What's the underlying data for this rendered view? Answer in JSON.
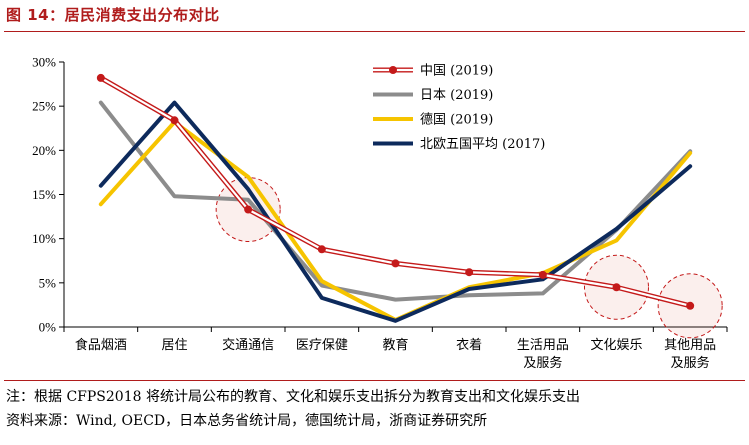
{
  "figure": {
    "title": "图 14：居民消费支出分布对比"
  },
  "notes": {
    "note": "注：根据 CFPS2018 将统计局公布的教育、文化和娱乐支出拆分为教育支出和文化娱乐支出",
    "source": "资料来源：Wind, OECD，日本总务省统计局，德国统计局，浙商证券研究所"
  },
  "chart_data": {
    "type": "line",
    "title": "居民消费支出分布对比",
    "categories": [
      "食品烟酒",
      "居住",
      "交通通信",
      "医疗保健",
      "教育",
      "衣着",
      "生活用品及服务",
      "文化娱乐",
      "其他用品及服务"
    ],
    "category_lines": [
      [
        "食品烟酒"
      ],
      [
        "居住"
      ],
      [
        "交通通信"
      ],
      [
        "医疗保健"
      ],
      [
        "教育"
      ],
      [
        "衣着"
      ],
      [
        "生活用品",
        "及服务"
      ],
      [
        "文化娱乐"
      ],
      [
        "其他用品",
        "及服务"
      ]
    ],
    "ylim": [
      0,
      30
    ],
    "yticks": [
      0,
      5,
      10,
      15,
      20,
      25,
      30
    ],
    "ytick_labels": [
      "0%",
      "5%",
      "10%",
      "15%",
      "20%",
      "25%",
      "30%"
    ],
    "series": [
      {
        "name": "中国 (2019)",
        "color": "#c41a1a",
        "values": [
          28.2,
          23.4,
          13.3,
          8.8,
          7.2,
          6.2,
          5.9,
          4.5,
          2.4
        ]
      },
      {
        "name": "日本 (2019)",
        "color": "#8c8c8c",
        "values": [
          25.4,
          14.8,
          14.4,
          4.7,
          3.1,
          3.6,
          3.8,
          11.0,
          19.9
        ]
      },
      {
        "name": "德国 (2019)",
        "color": "#f6c400",
        "values": [
          13.9,
          23.2,
          17.0,
          5.2,
          0.8,
          4.5,
          6.1,
          9.8,
          19.7
        ]
      },
      {
        "name": "北欧五国平均 (2017)",
        "color": "#0d2a5c",
        "values": [
          16.0,
          25.4,
          15.6,
          3.3,
          0.7,
          4.3,
          5.4,
          11.1,
          18.2
        ]
      }
    ],
    "highlighted_points": [
      {
        "series": "中国 (2019)",
        "category": "交通通信"
      },
      {
        "series": "中国 (2019)",
        "category": "文化娱乐"
      },
      {
        "series": "中国 (2019)",
        "category": "其他用品及服务"
      }
    ],
    "legend_position": "top-right"
  }
}
